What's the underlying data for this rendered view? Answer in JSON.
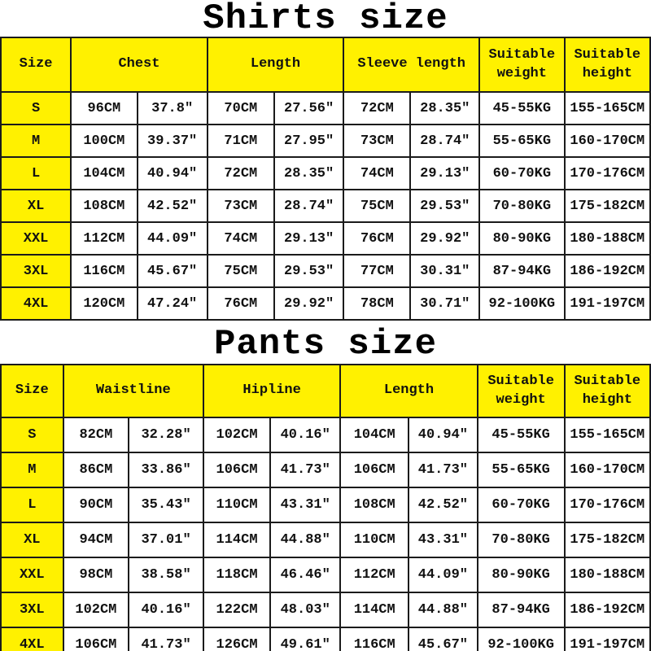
{
  "page": {
    "background": "#ffffff",
    "accent_yellow": "#fff100",
    "border_color": "#1b1b1b",
    "text_color": "#111111"
  },
  "shirts": {
    "title": "Shirts size",
    "header": {
      "size": "Size",
      "chest": "Chest",
      "length": "Length",
      "sleeve": "Sleeve length",
      "weight": "Suitable weight",
      "height": "Suitable height"
    },
    "rows": [
      [
        "S",
        "96CM",
        "37.8″",
        "70CM",
        "27.56″",
        "72CM",
        "28.35″",
        "45-55KG",
        "155-165CM"
      ],
      [
        "M",
        "100CM",
        "39.37″",
        "71CM",
        "27.95″",
        "73CM",
        "28.74″",
        "55-65KG",
        "160-170CM"
      ],
      [
        "L",
        "104CM",
        "40.94″",
        "72CM",
        "28.35″",
        "74CM",
        "29.13″",
        "60-70KG",
        "170-176CM"
      ],
      [
        "XL",
        "108CM",
        "42.52″",
        "73CM",
        "28.74″",
        "75CM",
        "29.53″",
        "70-80KG",
        "175-182CM"
      ],
      [
        "XXL",
        "112CM",
        "44.09″",
        "74CM",
        "29.13″",
        "76CM",
        "29.92″",
        "80-90KG",
        "180-188CM"
      ],
      [
        "3XL",
        "116CM",
        "45.67″",
        "75CM",
        "29.53″",
        "77CM",
        "30.31″",
        "87-94KG",
        "186-192CM"
      ],
      [
        "4XL",
        "120CM",
        "47.24″",
        "76CM",
        "29.92″",
        "78CM",
        "30.71″",
        "92-100KG",
        "191-197CM"
      ]
    ]
  },
  "pants": {
    "title": "Pants size",
    "header": {
      "size": "Size",
      "waistline": "Waistline",
      "hipline": "Hipline",
      "length": "Length",
      "weight": "Suitable weight",
      "height": "Suitable height"
    },
    "rows": [
      [
        "S",
        "82CM",
        "32.28″",
        "102CM",
        "40.16″",
        "104CM",
        "40.94″",
        "45-55KG",
        "155-165CM"
      ],
      [
        "M",
        "86CM",
        "33.86″",
        "106CM",
        "41.73″",
        "106CM",
        "41.73″",
        "55-65KG",
        "160-170CM"
      ],
      [
        "L",
        "90CM",
        "35.43″",
        "110CM",
        "43.31″",
        "108CM",
        "42.52″",
        "60-70KG",
        "170-176CM"
      ],
      [
        "XL",
        "94CM",
        "37.01″",
        "114CM",
        "44.88″",
        "110CM",
        "43.31″",
        "70-80KG",
        "175-182CM"
      ],
      [
        "XXL",
        "98CM",
        "38.58″",
        "118CM",
        "46.46″",
        "112CM",
        "44.09″",
        "80-90KG",
        "180-188CM"
      ],
      [
        "3XL",
        "102CM",
        "40.16″",
        "122CM",
        "48.03″",
        "114CM",
        "44.88″",
        "87-94KG",
        "186-192CM"
      ],
      [
        "4XL",
        "106CM",
        "41.73″",
        "126CM",
        "49.61″",
        "116CM",
        "45.67″",
        "92-100KG",
        "191-197CM"
      ]
    ]
  }
}
